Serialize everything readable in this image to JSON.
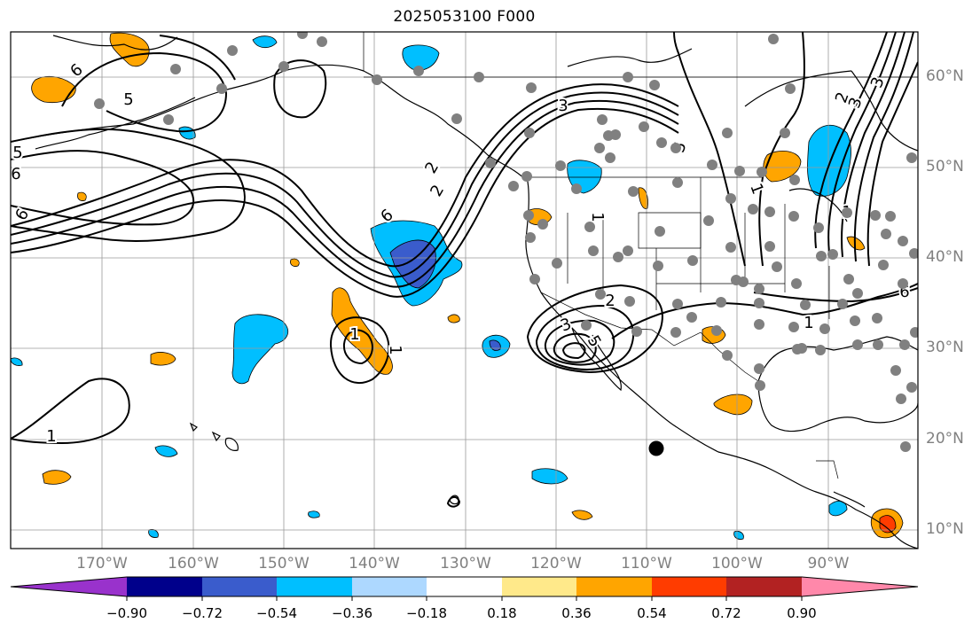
{
  "title": "2025053100 F000",
  "colors": {
    "ocean": "#ffffff",
    "grid": "#9a9a9a",
    "coast": "#000000",
    "station": "#808080",
    "contour": "#000000"
  },
  "lon_labels": [
    "170°W",
    "160°W",
    "150°W",
    "140°W",
    "130°W",
    "120°W",
    "110°W",
    "100°W",
    "90°W"
  ],
  "lat_labels": [
    "60°N",
    "50°N",
    "40°N",
    "30°N",
    "20°N",
    "10°N"
  ],
  "contour_labels": [
    "6",
    "5",
    "5",
    "6",
    "6",
    "3",
    "2",
    "6",
    "2",
    "1",
    "1",
    "1",
    "1",
    "3",
    "2",
    "5",
    "5",
    "3",
    "2",
    "1",
    "1",
    "3",
    "1",
    "6"
  ],
  "colorbar": {
    "ticks": [
      "−0.90",
      "−0.72",
      "−0.54",
      "−0.36",
      "−0.18",
      "0.18",
      "0.36",
      "0.54",
      "0.72",
      "0.90"
    ],
    "colors": [
      "#9932cc",
      "#00008b",
      "#3a5ccc",
      "#00bfff",
      "#add8ff",
      "#ffffff",
      "#ffe98a",
      "#ffa500",
      "#ff3c00",
      "#b22222",
      "#ff88aa"
    ]
  }
}
